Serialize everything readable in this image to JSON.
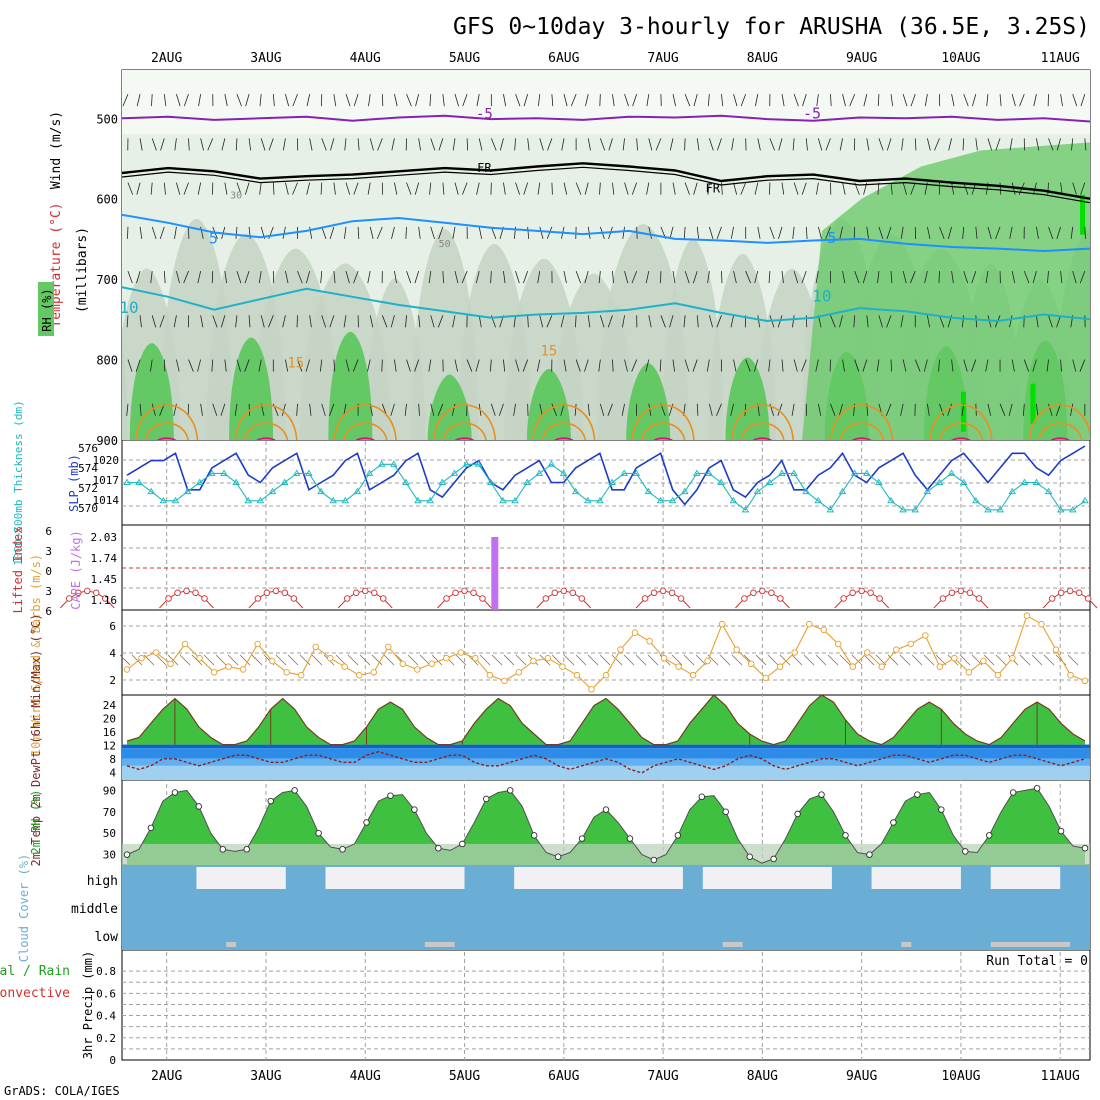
{
  "title": "GFS 0~10day 3-hourly for ARUSHA (36.5E, 3.25S)",
  "footer": "GrADS: COLA/IGES",
  "colors": {
    "grid": "#a0a0a0",
    "rh_light": "#e6f0e6",
    "rh_mid": "#c4d4c4",
    "rh_green": "#64c864",
    "rh_bright": "#00e000",
    "purple": "#8a1fb8",
    "blue": "#1e90ff",
    "cyan": "#20b0c8",
    "orange": "#e89020",
    "red": "#d03030",
    "magenta": "#e0107a",
    "slp": "#1c3cc8",
    "thick": "#20b8c0",
    "cape": "#c070f0",
    "wind10": "#e8a030",
    "cloud": "#6aaed6",
    "cloudlow": "#c8c8c8"
  },
  "chart_data": [
    {
      "type": "contour",
      "panel": "upper-air",
      "dates": [
        "2AUG",
        "3AUG",
        "4AUG",
        "5AUG",
        "6AUG",
        "7AUG",
        "8AUG",
        "9AUG",
        "10AUG",
        "11AUG"
      ],
      "ylabel_temp": "Temperature (°C)",
      "ylabel_wind": "Wind (m/s)",
      "ylabel_rh": "RH (%)",
      "ylabel_units": "(millibars)",
      "y_ticks": [
        "500",
        "600",
        "700",
        "800",
        "900"
      ],
      "ylim": [
        900,
        440
      ],
      "contour_labels": [
        {
          "text": "-5",
          "level": -5
        },
        {
          "text": "FR",
          "level": 0
        },
        {
          "text": "5",
          "level": 5
        },
        {
          "text": "10",
          "level": 10
        },
        {
          "text": "15",
          "level": 15
        },
        {
          "text": "30",
          "level": 30
        },
        {
          "text": "50",
          "level": 50
        }
      ],
      "series": [
        {
          "name": "-5",
          "p": [
            500,
            498,
            502,
            500,
            498,
            503,
            499,
            497,
            501,
            500,
            502,
            498,
            499,
            497,
            501,
            503,
            499,
            500,
            498,
            502,
            500,
            504
          ]
        },
        {
          "name": "FR",
          "p": [
            568,
            562,
            566,
            575,
            572,
            570,
            566,
            562,
            565,
            560,
            556,
            560,
            565,
            578,
            572,
            570,
            578,
            575,
            580,
            584,
            590,
            600
          ]
        },
        {
          "name": "5",
          "p": [
            620,
            630,
            642,
            648,
            640,
            628,
            624,
            630,
            636,
            640,
            644,
            640,
            650,
            652,
            655,
            652,
            650,
            656,
            660,
            662,
            665,
            662
          ]
        },
        {
          "name": "10",
          "p": [
            710,
            722,
            738,
            725,
            712,
            722,
            732,
            740,
            748,
            744,
            742,
            738,
            730,
            742,
            752,
            748,
            736,
            740,
            748,
            752,
            744,
            750
          ]
        }
      ]
    },
    {
      "type": "line",
      "panel": "slp-thickness",
      "ylabel_left": "1000~500mb Thickness (dm)",
      "ylabel_right": "SLP (mb)",
      "left_ticks": [
        "576",
        "574",
        "572",
        "570"
      ],
      "right_ticks": [
        "1020",
        "1017",
        "1014"
      ],
      "series": [
        {
          "name": "SLP (mb)",
          "ylim": [
            1012,
            1022
          ],
          "values": [
            1018,
            1019,
            1020,
            1020,
            1021,
            1016,
            1016,
            1019,
            1020,
            1021,
            1018,
            1017,
            1019,
            1020,
            1021,
            1016,
            1017,
            1018,
            1020,
            1021,
            1016,
            1017,
            1018,
            1020,
            1021,
            1016,
            1015,
            1017,
            1019,
            1020,
            1017,
            1016,
            1018,
            1019,
            1020,
            1017,
            1017,
            1019,
            1020,
            1021,
            1016,
            1016,
            1019,
            1020,
            1021,
            1016,
            1014,
            1016,
            1019,
            1020,
            1016,
            1015,
            1017,
            1018,
            1020,
            1016,
            1016,
            1018,
            1019,
            1021,
            1018,
            1017,
            1019,
            1020,
            1021,
            1018,
            1016,
            1018,
            1020,
            1021,
            1019,
            1017,
            1019,
            1021,
            1021,
            1019,
            1018,
            1020,
            1021,
            1022
          ]
        },
        {
          "name": "Thickness (dm)",
          "ylim": [
            569,
            577
          ],
          "values": [
            573,
            573,
            572,
            571,
            571,
            572,
            573,
            574,
            574,
            573,
            571,
            571,
            572,
            573,
            574,
            574,
            572,
            571,
            571,
            572,
            574,
            575,
            575,
            573,
            571,
            571,
            573,
            574,
            575,
            575,
            573,
            571,
            571,
            573,
            574,
            575,
            574,
            572,
            571,
            571,
            573,
            574,
            574,
            572,
            571,
            571,
            572,
            574,
            574,
            573,
            571,
            570,
            572,
            573,
            574,
            574,
            572,
            571,
            570,
            572,
            574,
            574,
            573,
            571,
            570,
            570,
            572,
            573,
            574,
            573,
            571,
            570,
            570,
            572,
            573,
            573,
            572,
            570,
            570,
            571
          ]
        }
      ]
    },
    {
      "type": "line",
      "panel": "lifted-cape",
      "ylabel_left": "Lifted Index",
      "ylabel_right": "CAPE (J/kg)",
      "left_ticks": [
        "6",
        "3",
        "0",
        "3",
        "6"
      ],
      "right_ticks": [
        "2.03",
        "1.74",
        "1.45",
        "1.16"
      ],
      "cape_spike": {
        "day": 5.3,
        "value": 2.0
      },
      "bumps": [
        0.6,
        1.6,
        2.5,
        3.4,
        4.4,
        5.4,
        6.4,
        7.4,
        8.4,
        9.4,
        10.5
      ]
    },
    {
      "type": "line",
      "panel": "wind10",
      "ylabel": "10m Wind Speed & Barbs (m/s)",
      "y_ticks": [
        "6",
        "4",
        "2"
      ],
      "ylim": [
        1,
        7
      ],
      "values": [
        2.8,
        3.6,
        4.0,
        3.2,
        4.6,
        3.6,
        2.6,
        3.0,
        2.8,
        4.6,
        3.4,
        2.6,
        2.4,
        4.4,
        3.6,
        3.0,
        2.4,
        2.6,
        4.4,
        3.2,
        2.8,
        3.2,
        3.6,
        4.0,
        3.6,
        2.4,
        2.0,
        2.6,
        3.4,
        3.6,
        3.0,
        2.4,
        1.4,
        2.4,
        4.2,
        5.4,
        4.8,
        3.6,
        3.0,
        2.4,
        3.4,
        6.0,
        4.2,
        3.2,
        2.2,
        3.0,
        4.0,
        6.0,
        5.6,
        4.6,
        3.0,
        4.0,
        3.0,
        4.2,
        4.6,
        5.2,
        3.0,
        3.6,
        2.6,
        3.4,
        2.4,
        3.6,
        6.6,
        6.0,
        4.2,
        2.4,
        2.0
      ]
    },
    {
      "type": "area",
      "panel": "temp-dew",
      "ylabel": "2m Temp 2m DewPt (6hr Min/Max) (°C)",
      "y_ticks": [
        "24",
        "20",
        "16",
        "12",
        "8",
        "4"
      ],
      "ylim": [
        2,
        26
      ],
      "temp": [
        13,
        14,
        18,
        22,
        25,
        22,
        17,
        14,
        12,
        12,
        13,
        17,
        22,
        25,
        22,
        17,
        14,
        12,
        12,
        13,
        17,
        22,
        24,
        22,
        17,
        14,
        12,
        12,
        13,
        18,
        22,
        25,
        23,
        18,
        15,
        12,
        12,
        13,
        18,
        23,
        25,
        22,
        18,
        14,
        12,
        12,
        13,
        18,
        22,
        26,
        23,
        18,
        15,
        13,
        12,
        13,
        18,
        23,
        26,
        24,
        19,
        15,
        13,
        12,
        14,
        18,
        22,
        24,
        22,
        18,
        15,
        13,
        12,
        14,
        18,
        22,
        24,
        22,
        18,
        15,
        13
      ],
      "dew": [
        6,
        5,
        6,
        8,
        8,
        7,
        6,
        7,
        8,
        9,
        9,
        8,
        7,
        7,
        8,
        9,
        9,
        8,
        7,
        7,
        9,
        10,
        9,
        8,
        7,
        7,
        8,
        9,
        9,
        7,
        6,
        6,
        7,
        8,
        9,
        8,
        6,
        5,
        6,
        7,
        8,
        7,
        5,
        4,
        6,
        7,
        8,
        7,
        6,
        5,
        6,
        8,
        9,
        8,
        6,
        5,
        6,
        7,
        8,
        8,
        7,
        6,
        7,
        8,
        9,
        9,
        8,
        7,
        8,
        9,
        9,
        8,
        7,
        8,
        9,
        9,
        8,
        7,
        6,
        7,
        8
      ]
    },
    {
      "type": "area",
      "panel": "rh2m",
      "ylabel": "2m RH (%)",
      "y_ticks": [
        "90",
        "70",
        "50",
        "30"
      ],
      "ylim": [
        25,
        95
      ],
      "values": [
        30,
        35,
        55,
        80,
        88,
        90,
        75,
        50,
        35,
        33,
        35,
        55,
        80,
        88,
        90,
        75,
        50,
        37,
        35,
        40,
        60,
        80,
        85,
        86,
        72,
        50,
        36,
        34,
        40,
        60,
        82,
        88,
        90,
        75,
        48,
        32,
        28,
        32,
        45,
        65,
        72,
        60,
        45,
        30,
        25,
        30,
        48,
        72,
        84,
        85,
        70,
        45,
        28,
        22,
        26,
        45,
        68,
        82,
        86,
        70,
        48,
        32,
        30,
        40,
        60,
        80,
        86,
        88,
        72,
        48,
        33,
        32,
        48,
        70,
        88,
        90,
        92,
        75,
        52,
        38,
        36
      ]
    },
    {
      "type": "area",
      "panel": "cloud",
      "ylabel": "Cloud Cover (%)",
      "y_ticks": [
        "high",
        "middle",
        "low"
      ]
    },
    {
      "type": "bar",
      "panel": "precip",
      "ylabel": "3hr Precip (mm)",
      "legend_left": "Total / Rain",
      "legend_left2": "Convective",
      "y_ticks": [
        "0.8",
        "0.6",
        "0.4",
        "0.2",
        "0"
      ],
      "ylim": [
        0,
        0.9
      ],
      "values": [],
      "annotation": "Run Total = 0"
    }
  ]
}
